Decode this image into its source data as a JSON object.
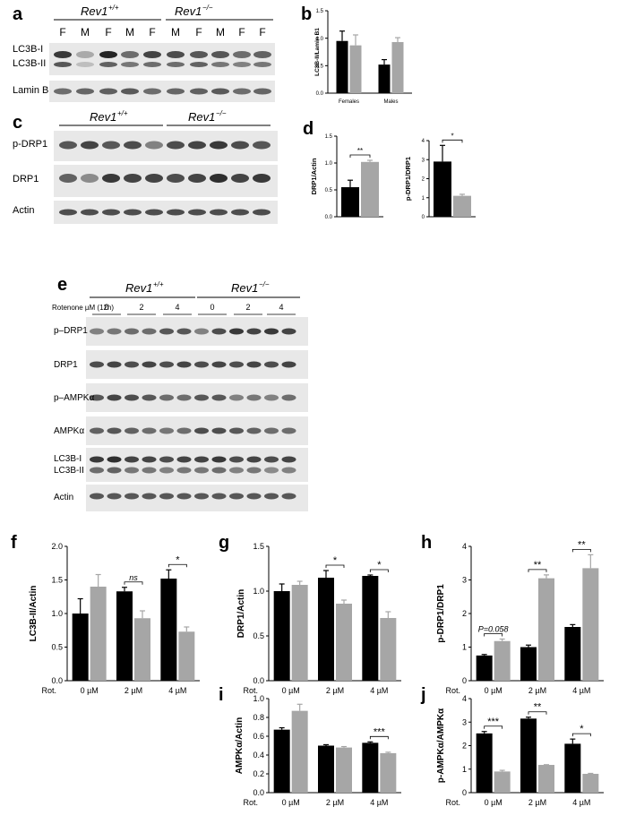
{
  "panel_labels": {
    "a": "a",
    "b": "b",
    "c": "c",
    "d": "d",
    "e": "e",
    "f": "f",
    "g": "g",
    "h": "h",
    "i": "i",
    "j": "j"
  },
  "genotypes": {
    "wt": "Rev1",
    "wt_sup": "+/+",
    "ko": "Rev1",
    "ko_sup": "−/−"
  },
  "blot_a": {
    "lanes": [
      "F",
      "M",
      "F",
      "M",
      "F",
      "M",
      "F",
      "M",
      "F",
      "F"
    ],
    "rows": [
      "LC3B-I",
      "LC3B-II",
      "Lamin B1"
    ]
  },
  "blot_c": {
    "rows": [
      "p-DRP1",
      "DRP1",
      "Actin"
    ]
  },
  "blot_e": {
    "treatment_label": "Rotenone µM (12h)",
    "doses": [
      "0",
      "2",
      "4",
      "0",
      "2",
      "4"
    ],
    "rows": [
      "p–DRP1",
      "DRP1",
      "p–AMPKα",
      "AMPKα",
      "LC3B-I",
      "LC3B-II",
      "Actin"
    ]
  },
  "chart_data": [
    {
      "id": "b",
      "type": "bar",
      "ylabel": "LC3B-II/Lamin B1",
      "categories": [
        "Females",
        "Males"
      ],
      "ylim": [
        0,
        1.5
      ],
      "yticks": [
        "0.0",
        "0.5",
        "1.0",
        "1.5"
      ],
      "series": [
        {
          "color": "#000000",
          "values": [
            0.95,
            0.52
          ],
          "errors": [
            0.18,
            0.09
          ]
        },
        {
          "color": "#a6a6a6",
          "values": [
            0.87,
            0.93
          ],
          "errors": [
            0.19,
            0.08
          ]
        }
      ]
    },
    {
      "id": "d1",
      "type": "bar",
      "ylabel": "DRP1/Actin",
      "categories": [
        ""
      ],
      "ylim": [
        0,
        1.5
      ],
      "yticks": [
        "0.0",
        "0.5",
        "1.0",
        "1.5"
      ],
      "series": [
        {
          "color": "#000000",
          "values": [
            0.55
          ],
          "errors": [
            0.13
          ]
        },
        {
          "color": "#a6a6a6",
          "values": [
            1.02
          ],
          "errors": [
            0.03
          ]
        }
      ],
      "annotations": [
        {
          "text": "**",
          "group": 0
        }
      ]
    },
    {
      "id": "d2",
      "type": "bar",
      "ylabel": "p-DRP1/DRP1",
      "categories": [
        ""
      ],
      "ylim": [
        0,
        4
      ],
      "yticks": [
        "0",
        "1",
        "2",
        "3",
        "4"
      ],
      "series": [
        {
          "color": "#000000",
          "values": [
            2.9
          ],
          "errors": [
            0.85
          ]
        },
        {
          "color": "#a6a6a6",
          "values": [
            1.1
          ],
          "errors": [
            0.08
          ]
        }
      ],
      "annotations": [
        {
          "text": "*",
          "group": 0
        }
      ]
    },
    {
      "id": "f",
      "type": "bar",
      "ylabel": "LC3B-II/Actin",
      "xlabel": "Rot.",
      "categories": [
        "0 µM",
        "2 µM",
        "4 µM"
      ],
      "ylim": [
        0,
        2
      ],
      "yticks": [
        "0.0",
        "0.5",
        "1.0",
        "1.5",
        "2.0"
      ],
      "series": [
        {
          "color": "#000000",
          "values": [
            1.0,
            1.33,
            1.52
          ],
          "errors": [
            0.22,
            0.06,
            0.13
          ]
        },
        {
          "color": "#a6a6a6",
          "values": [
            1.4,
            0.93,
            0.73
          ],
          "errors": [
            0.18,
            0.11,
            0.07
          ]
        }
      ],
      "annotations": [
        {
          "text": "ns",
          "group": 1,
          "italic": true
        },
        {
          "text": "*",
          "group": 2
        }
      ]
    },
    {
      "id": "g",
      "type": "bar",
      "ylabel": "DRP1/Actin",
      "xlabel": "Rot.",
      "categories": [
        "0 µM",
        "2 µM",
        "4 µM"
      ],
      "ylim": [
        0,
        1.5
      ],
      "yticks": [
        "0.0",
        "0.5",
        "1.0",
        "1.5"
      ],
      "series": [
        {
          "color": "#000000",
          "values": [
            1.0,
            1.15,
            1.17
          ],
          "errors": [
            0.08,
            0.08,
            0.01
          ]
        },
        {
          "color": "#a6a6a6",
          "values": [
            1.07,
            0.86,
            0.7
          ],
          "errors": [
            0.04,
            0.04,
            0.07
          ]
        }
      ],
      "annotations": [
        {
          "text": "*",
          "group": 1
        },
        {
          "text": "*",
          "group": 2
        }
      ]
    },
    {
      "id": "h",
      "type": "bar",
      "ylabel": "p-DRP1/DRP1",
      "xlabel": "Rot.",
      "categories": [
        "0 µM",
        "2 µM",
        "4 µM"
      ],
      "ylim": [
        0,
        4
      ],
      "yticks": [
        "0",
        "1",
        "2",
        "3",
        "4"
      ],
      "series": [
        {
          "color": "#000000",
          "values": [
            0.75,
            1.0,
            1.6
          ],
          "errors": [
            0.03,
            0.06,
            0.07
          ]
        },
        {
          "color": "#a6a6a6",
          "values": [
            1.18,
            3.05,
            3.35
          ],
          "errors": [
            0.06,
            0.1,
            0.4
          ]
        }
      ],
      "annotations": [
        {
          "text": "P=0.058",
          "group": 0,
          "italic": true
        },
        {
          "text": "**",
          "group": 1
        },
        {
          "text": "**",
          "group": 2
        }
      ]
    },
    {
      "id": "i",
      "type": "bar",
      "ylabel": "AMPKα/Actin",
      "xlabel": "Rot.",
      "categories": [
        "0 µM",
        "2 µM",
        "4 µM"
      ],
      "ylim": [
        0,
        1.0
      ],
      "yticks": [
        "0.0",
        "0.2",
        "0.4",
        "0.6",
        "0.8",
        "1.0"
      ],
      "series": [
        {
          "color": "#000000",
          "values": [
            0.67,
            0.5,
            0.53
          ],
          "errors": [
            0.02,
            0.01,
            0.01
          ]
        },
        {
          "color": "#a6a6a6",
          "values": [
            0.87,
            0.48,
            0.42
          ],
          "errors": [
            0.07,
            0.01,
            0.01
          ]
        }
      ],
      "annotations": [
        {
          "text": "***",
          "group": 2
        }
      ]
    },
    {
      "id": "j",
      "type": "bar",
      "ylabel": "p-AMPKα/AMPKα",
      "xlabel": "Rot.",
      "categories": [
        "0 µM",
        "2 µM",
        "4 µM"
      ],
      "ylim": [
        0,
        4
      ],
      "yticks": [
        "0",
        "1",
        "2",
        "3",
        "4"
      ],
      "series": [
        {
          "color": "#000000",
          "values": [
            2.52,
            3.15,
            2.08
          ],
          "errors": [
            0.08,
            0.06,
            0.2
          ]
        },
        {
          "color": "#a6a6a6",
          "values": [
            0.9,
            1.18,
            0.8
          ],
          "errors": [
            0.05,
            0.01,
            0.02
          ]
        }
      ],
      "annotations": [
        {
          "text": "***",
          "group": 0
        },
        {
          "text": "**",
          "group": 1
        },
        {
          "text": "*",
          "group": 2
        }
      ]
    }
  ]
}
